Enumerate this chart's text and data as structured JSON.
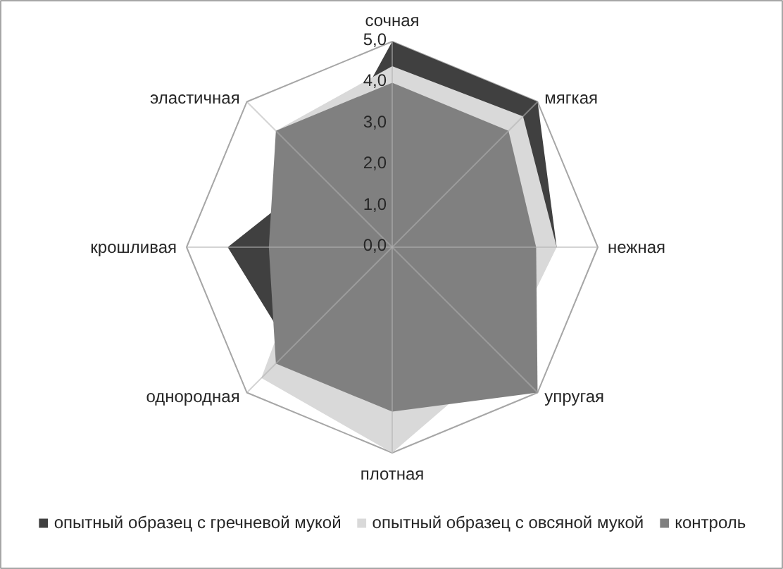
{
  "chart_data": {
    "type": "radar",
    "categories": [
      "сочная",
      "мягкая",
      "нежная",
      "упругая",
      "плотная",
      "однородная",
      "крошливая",
      "эластичная"
    ],
    "series": [
      {
        "name": "опытный образец с гречневой мукой",
        "color": "#404040",
        "values": [
          5.0,
          5.0,
          4.0,
          null,
          null,
          3.5,
          4.0,
          2.5
        ]
      },
      {
        "name": "опытный образец с овсяной мукой",
        "color": "#d9d9d9",
        "values": [
          4.4,
          4.5,
          4.0,
          3.8,
          5.0,
          4.5,
          2.0,
          4.0
        ]
      },
      {
        "name": "контроль",
        "color": "#808080",
        "values": [
          4.0,
          4.0,
          3.5,
          5.0,
          4.0,
          4.0,
          3.0,
          4.0
        ]
      }
    ],
    "ylim": [
      0,
      5
    ],
    "yticks": [
      {
        "value": 0,
        "label": "0,0"
      },
      {
        "value": 1,
        "label": "1,0"
      },
      {
        "value": 2,
        "label": "2,0"
      },
      {
        "value": 3,
        "label": "3,0"
      },
      {
        "value": 4,
        "label": "4,0"
      },
      {
        "value": 5,
        "label": "5,0"
      }
    ],
    "grid": "x",
    "legend": "bottom"
  }
}
